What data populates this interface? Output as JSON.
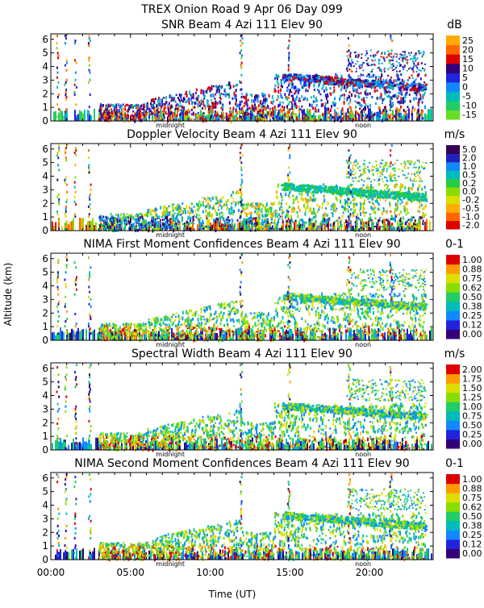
{
  "header": {
    "title": "TREX Onion Road   9 Apr 06 Day 099"
  },
  "axes": {
    "xlabel": "Time (UT)",
    "ylabel": "Altitude (km)",
    "x_ticks": [
      "00:00",
      "05:00",
      "10:00",
      "15:00",
      "20:00"
    ],
    "x_tick_values": [
      0,
      5,
      10,
      15,
      20
    ],
    "xlim": [
      0,
      24
    ],
    "y_ticks": [
      "0",
      "1",
      "2",
      "3",
      "4",
      "5",
      "6"
    ],
    "ylim": [
      0,
      6.4
    ],
    "midnight_label": "midnight",
    "noon_label": "noon",
    "midnight_hour": 7.5,
    "noon_hour": 19.6
  },
  "chart_data": [
    {
      "type": "heatmap",
      "title": "SNR Beam 4 Azi 111 Elev 90",
      "unit": "dB",
      "colorbar_labels": [
        "-15",
        "-10",
        "-5",
        "0",
        "5",
        "10",
        "15",
        "20",
        "25"
      ],
      "colors": [
        "#66dd22",
        "#22cc66",
        "#00bbbb",
        "#1188ff",
        "#2222dd",
        "#330077",
        "#dd0000",
        "#ff6600",
        "#ffaa00"
      ]
    },
    {
      "type": "heatmap",
      "title": "Doppler Velocity Beam 4 Azi 111 Elev 90",
      "unit": "m/s",
      "colorbar_labels": [
        "-2.0",
        "-1.0",
        "-0.5",
        "-0.2",
        "0.0",
        "0.2",
        "0.5",
        "1.0",
        "2.0",
        "5.0"
      ],
      "colors": [
        "#dd0000",
        "#ff6600",
        "#ffaa00",
        "#dddd00",
        "#88dd00",
        "#22cc44",
        "#00bbbb",
        "#1188ff",
        "#2222bb",
        "#330055"
      ]
    },
    {
      "type": "heatmap",
      "title": "NIMA First Moment Confidences Beam 4 Azi 111 Elev 90",
      "unit": "0-1",
      "colorbar_labels": [
        "0.00",
        "0.12",
        "0.25",
        "0.38",
        "0.50",
        "0.62",
        "0.75",
        "0.88",
        "1.00"
      ],
      "colors": [
        "#330077",
        "#2222dd",
        "#1188ff",
        "#00bbbb",
        "#22cc66",
        "#88dd00",
        "#dddd00",
        "#ff9900",
        "#dd0000"
      ]
    },
    {
      "type": "heatmap",
      "title": "Spectral Width Beam 4 Azi 111 Elev 90",
      "unit": "m/s",
      "colorbar_labels": [
        "0.00",
        "0.25",
        "0.50",
        "0.75",
        "1.00",
        "1.25",
        "1.50",
        "1.75",
        "2.00"
      ],
      "colors": [
        "#330077",
        "#2222dd",
        "#1188ff",
        "#00bbbb",
        "#22cc66",
        "#88dd00",
        "#dddd00",
        "#ff9900",
        "#dd0000"
      ]
    },
    {
      "type": "heatmap",
      "title": "NIMA Second Moment Confidences Beam 4 Azi 111 Elev 90",
      "unit": "0-1",
      "colorbar_labels": [
        "0.00",
        "0.12",
        "0.25",
        "0.38",
        "0.50",
        "0.62",
        "0.75",
        "0.88",
        "1.00"
      ],
      "colors": [
        "#330077",
        "#2222dd",
        "#1188ff",
        "#00bbbb",
        "#22cc66",
        "#88dd00",
        "#dddd00",
        "#ff9900",
        "#dd0000"
      ]
    }
  ]
}
